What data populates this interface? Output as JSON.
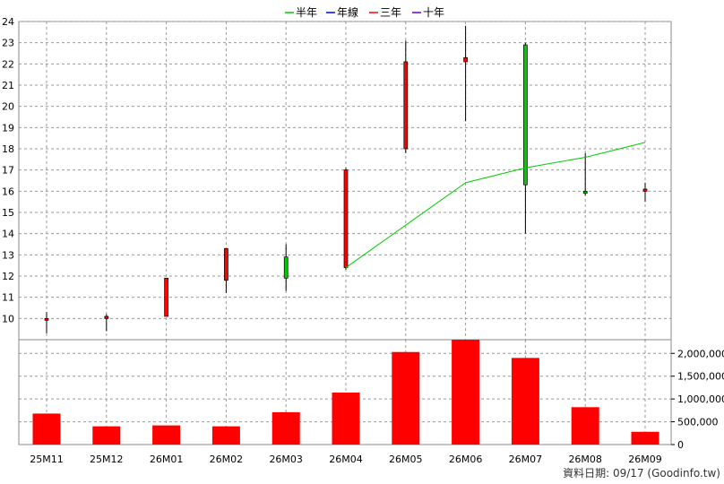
{
  "legend": [
    {
      "label": "半年",
      "color": "#00cc00"
    },
    {
      "label": "年線",
      "color": "#0000ff"
    },
    {
      "label": "三年",
      "color": "#ff0000"
    },
    {
      "label": "十年",
      "color": "#6600cc"
    }
  ],
  "source_note": "資料日期: 09/17  (Goodinfo.tw)",
  "chart_data": [
    {
      "type": "candlestick",
      "categories": [
        "25M11",
        "25M12",
        "26M01",
        "26M02",
        "26M03",
        "26M04",
        "26M05",
        "26M06",
        "26M07",
        "26M08",
        "26M09"
      ],
      "ylim": [
        9,
        24
      ],
      "yticks": [
        10,
        11,
        12,
        13,
        14,
        15,
        16,
        17,
        18,
        19,
        20,
        21,
        22,
        23,
        24
      ],
      "grid": true,
      "ohlc": [
        {
          "open": 10.0,
          "high": 10.3,
          "low": 9.3,
          "close": 10.0
        },
        {
          "open": 10.0,
          "high": 10.2,
          "low": 9.4,
          "close": 10.1
        },
        {
          "open": 10.1,
          "high": 11.9,
          "low": 10.1,
          "close": 11.9
        },
        {
          "open": 11.8,
          "high": 13.3,
          "low": 11.2,
          "close": 13.3
        },
        {
          "open": 12.9,
          "high": 13.5,
          "low": 11.3,
          "close": 11.9
        },
        {
          "open": 12.4,
          "high": 17.1,
          "low": 12.3,
          "close": 17.0
        },
        {
          "open": 18.0,
          "high": 23.1,
          "low": 17.8,
          "close": 22.1
        },
        {
          "open": 22.1,
          "high": 23.8,
          "low": 19.3,
          "close": 22.3
        },
        {
          "open": 22.9,
          "high": 23.0,
          "low": 14.0,
          "close": 16.3
        },
        {
          "open": 16.0,
          "high": 17.8,
          "low": 15.8,
          "close": 15.9
        },
        {
          "open": 16.0,
          "high": 16.4,
          "low": 15.5,
          "close": 16.1
        }
      ],
      "moving_average": {
        "name": "半年",
        "color": "#00cc00",
        "points": [
          {
            "category": "26M04",
            "value": 12.4
          },
          {
            "category": "26M05",
            "value": 14.4
          },
          {
            "category": "26M06",
            "value": 16.4
          },
          {
            "category": "26M07",
            "value": 17.1
          },
          {
            "category": "26M08",
            "value": 17.6
          },
          {
            "category": "26M09",
            "value": 18.3
          }
        ]
      },
      "up_color": "#ff0000",
      "down_color": "#00cc00"
    },
    {
      "type": "bar",
      "categories": [
        "25M11",
        "25M12",
        "26M01",
        "26M02",
        "26M03",
        "26M04",
        "26M05",
        "26M06",
        "26M07",
        "26M08",
        "26M09"
      ],
      "values": [
        680000,
        400000,
        420000,
        400000,
        710000,
        1140000,
        2030000,
        2300000,
        1900000,
        820000,
        280000
      ],
      "ylim": [
        0,
        2300000
      ],
      "yticks": [
        0,
        500000,
        1000000,
        1500000,
        2000000
      ],
      "ytick_labels": [
        "0",
        "500,000",
        "1,000,000",
        "1,500,000",
        "2,000,000"
      ],
      "color": "#ff0000",
      "grid": true
    }
  ]
}
